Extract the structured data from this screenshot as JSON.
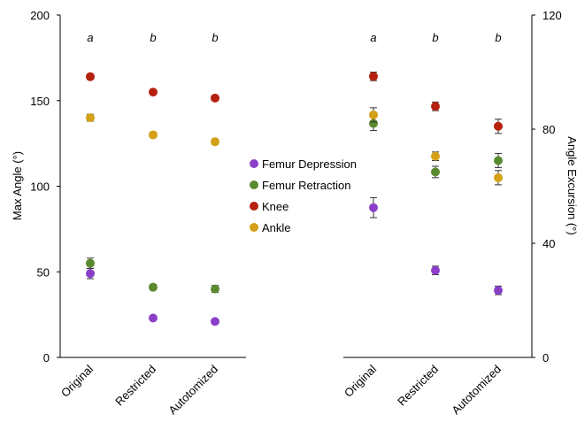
{
  "chart_data": [
    {
      "type": "scatter",
      "ylabel": "Max Angle (°)",
      "y_axis_side": "left",
      "ylim": [
        0,
        200
      ],
      "yticks": [
        "0",
        "50",
        "100",
        "150",
        "200"
      ],
      "categories": [
        "Original",
        "Restricted",
        "Autotomized"
      ],
      "significance_labels": [
        "a",
        "b",
        "b"
      ],
      "legend": "center",
      "series": [
        {
          "name": "Femur Depression",
          "color": "#8B3FC8",
          "values": [
            49,
            23,
            21
          ],
          "errors": [
            3,
            1,
            1
          ]
        },
        {
          "name": "Femur Retraction",
          "color": "#5A8A2E",
          "values": [
            55,
            41,
            40
          ],
          "errors": [
            3,
            1.5,
            2
          ]
        },
        {
          "name": "Knee",
          "color": "#B5200F",
          "values": [
            164,
            155,
            151.5
          ],
          "errors": [
            1.5,
            1,
            1
          ]
        },
        {
          "name": "Ankle",
          "color": "#D4A017",
          "values": [
            140,
            130,
            126
          ],
          "errors": [
            2,
            1.5,
            1.5
          ]
        }
      ]
    },
    {
      "type": "scatter",
      "ylabel": "Angle Excursion (°)",
      "y_axis_side": "right",
      "ylim": [
        0,
        120
      ],
      "yticks": [
        "0",
        "40",
        "80",
        "120"
      ],
      "categories": [
        "Original",
        "Restricted",
        "Autotomized"
      ],
      "significance_labels": [
        "a",
        "b",
        "b"
      ],
      "series": [
        {
          "name": "Femur Depression",
          "color": "#8B3FC8",
          "values": [
            52.5,
            30.5,
            23.5
          ],
          "errors": [
            3.5,
            1.5,
            1.5
          ]
        },
        {
          "name": "Femur Retraction",
          "color": "#5A8A2E",
          "values": [
            82,
            65,
            69
          ],
          "errors": [
            2.5,
            2,
            2.5
          ]
        },
        {
          "name": "Knee",
          "color": "#B5200F",
          "values": [
            98.5,
            88,
            81
          ],
          "errors": [
            1.5,
            1.5,
            2.5
          ]
        },
        {
          "name": "Ankle",
          "color": "#D4A017",
          "values": [
            85,
            70.5,
            63
          ],
          "errors": [
            2.5,
            1.5,
            2.5
          ]
        }
      ]
    }
  ]
}
